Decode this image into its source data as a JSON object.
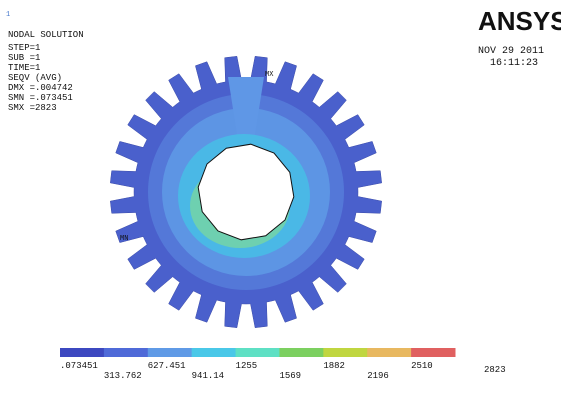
{
  "header": {
    "index": "1",
    "title": "NODAL SOLUTION",
    "lines": [
      "STEP=1",
      "SUB =1",
      "TIME=1",
      "SEQV     (AVG)",
      "DMX =.004742",
      "SMN =.073451",
      "SMX =2823"
    ]
  },
  "logo": "ANSYS",
  "date": "NOV 29 2011",
  "time": "16:11:23",
  "markers": {
    "max": "MX",
    "min": "MN"
  },
  "legend": {
    "labels": [
      ".073451",
      "313.762",
      "627.451",
      "941.14",
      "1255",
      "1569",
      "1882",
      "2196",
      "2510",
      "2823"
    ]
  }
}
